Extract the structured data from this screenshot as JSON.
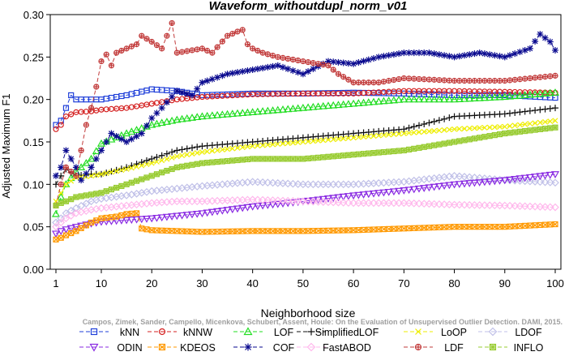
{
  "chart_data": {
    "type": "line",
    "title": "Waveform_withoutdupl_norm_v01",
    "xlabel": "Neighborhood size",
    "ylabel": "Adjusted Maximum F1",
    "xlim": [
      1,
      100
    ],
    "ylim": [
      0.0,
      0.3
    ],
    "xticks": [
      1,
      10,
      20,
      30,
      40,
      50,
      60,
      70,
      80,
      90,
      100
    ],
    "yticks": [
      0.0,
      0.05,
      0.1,
      0.15,
      0.2,
      0.25,
      0.3
    ],
    "ytick_labels": [
      "0.00",
      "0.05",
      "0.10",
      "0.15",
      "0.20",
      "0.25",
      "0.30"
    ],
    "grid": false,
    "legend_position": "bottom",
    "watermark": "Campos, Zimek, Sander, Campello, Micenkova, Schubert, Assent, Houle: On the Evaluation of Unsupervised Outlier Detection. DAMI, 2015.",
    "series": [
      {
        "name": "kNN",
        "color": "#1f3fd9",
        "marker": "square",
        "dash": "5,3",
        "points": [
          [
            1,
            0.17
          ],
          [
            2,
            0.175
          ],
          [
            3,
            0.19
          ],
          [
            4,
            0.205
          ],
          [
            5,
            0.2
          ],
          [
            8,
            0.2
          ],
          [
            10,
            0.2
          ],
          [
            15,
            0.205
          ],
          [
            20,
            0.212
          ],
          [
            25,
            0.21
          ],
          [
            30,
            0.205
          ],
          [
            40,
            0.207
          ],
          [
            50,
            0.207
          ],
          [
            60,
            0.208
          ],
          [
            70,
            0.207
          ],
          [
            80,
            0.205
          ],
          [
            90,
            0.205
          ],
          [
            100,
            0.202
          ]
        ]
      },
      {
        "name": "kNNW",
        "color": "#d42020",
        "marker": "circle",
        "dash": "5,3",
        "points": [
          [
            1,
            0.165
          ],
          [
            2,
            0.17
          ],
          [
            3,
            0.18
          ],
          [
            5,
            0.185
          ],
          [
            8,
            0.186
          ],
          [
            10,
            0.188
          ],
          [
            15,
            0.19
          ],
          [
            20,
            0.195
          ],
          [
            25,
            0.2
          ],
          [
            30,
            0.203
          ],
          [
            40,
            0.206
          ],
          [
            50,
            0.207
          ],
          [
            60,
            0.207
          ],
          [
            70,
            0.21
          ],
          [
            80,
            0.21
          ],
          [
            90,
            0.209
          ],
          [
            100,
            0.208
          ]
        ]
      },
      {
        "name": "LOF",
        "color": "#22dd22",
        "marker": "triangle-up",
        "dash": "5,3",
        "points": [
          [
            1,
            0.065
          ],
          [
            2,
            0.085
          ],
          [
            3,
            0.1
          ],
          [
            5,
            0.115
          ],
          [
            8,
            0.13
          ],
          [
            10,
            0.148
          ],
          [
            15,
            0.16
          ],
          [
            20,
            0.17
          ],
          [
            25,
            0.176
          ],
          [
            30,
            0.18
          ],
          [
            40,
            0.185
          ],
          [
            50,
            0.19
          ],
          [
            60,
            0.195
          ],
          [
            70,
            0.2
          ],
          [
            80,
            0.2
          ],
          [
            90,
            0.203
          ],
          [
            100,
            0.208
          ]
        ]
      },
      {
        "name": "SimplifiedLOF",
        "color": "#111111",
        "marker": "plus",
        "dash": "5,3",
        "points": [
          [
            1,
            0.1
          ],
          [
            2,
            0.11
          ],
          [
            3,
            0.118
          ],
          [
            5,
            0.11
          ],
          [
            8,
            0.112
          ],
          [
            10,
            0.112
          ],
          [
            15,
            0.12
          ],
          [
            20,
            0.13
          ],
          [
            25,
            0.14
          ],
          [
            30,
            0.145
          ],
          [
            40,
            0.15
          ],
          [
            50,
            0.155
          ],
          [
            60,
            0.16
          ],
          [
            70,
            0.165
          ],
          [
            80,
            0.18
          ],
          [
            90,
            0.183
          ],
          [
            100,
            0.19
          ]
        ]
      },
      {
        "name": "LoOP",
        "color": "#eeee00",
        "marker": "x",
        "dash": "5,3",
        "points": [
          [
            1,
            0.08
          ],
          [
            2,
            0.09
          ],
          [
            3,
            0.1
          ],
          [
            5,
            0.108
          ],
          [
            8,
            0.11
          ],
          [
            10,
            0.112
          ],
          [
            15,
            0.118
          ],
          [
            20,
            0.125
          ],
          [
            25,
            0.133
          ],
          [
            30,
            0.138
          ],
          [
            40,
            0.145
          ],
          [
            50,
            0.15
          ],
          [
            60,
            0.155
          ],
          [
            70,
            0.16
          ],
          [
            80,
            0.165
          ],
          [
            90,
            0.168
          ],
          [
            100,
            0.175
          ]
        ]
      },
      {
        "name": "LDOF",
        "color": "#c0c0e8",
        "marker": "diamond",
        "dash": "5,3",
        "points": [
          [
            1,
            0.055
          ],
          [
            2,
            0.06
          ],
          [
            3,
            0.066
          ],
          [
            5,
            0.072
          ],
          [
            8,
            0.08
          ],
          [
            10,
            0.083
          ],
          [
            15,
            0.087
          ],
          [
            20,
            0.092
          ],
          [
            25,
            0.095
          ],
          [
            30,
            0.098
          ],
          [
            40,
            0.103
          ],
          [
            50,
            0.1
          ],
          [
            60,
            0.1
          ],
          [
            70,
            0.103
          ],
          [
            80,
            0.11
          ],
          [
            90,
            0.105
          ],
          [
            100,
            0.102
          ]
        ]
      },
      {
        "name": "ODIN",
        "color": "#8a2be2",
        "marker": "triangle-down",
        "dash": "5,3",
        "points": [
          [
            1,
            0.042
          ],
          [
            2,
            0.045
          ],
          [
            3,
            0.047
          ],
          [
            5,
            0.05
          ],
          [
            8,
            0.054
          ],
          [
            10,
            0.056
          ],
          [
            15,
            0.058
          ],
          [
            20,
            0.06
          ],
          [
            25,
            0.063
          ],
          [
            30,
            0.066
          ],
          [
            40,
            0.074
          ],
          [
            50,
            0.08
          ],
          [
            60,
            0.087
          ],
          [
            70,
            0.093
          ],
          [
            80,
            0.1
          ],
          [
            90,
            0.105
          ],
          [
            100,
            0.112
          ]
        ]
      },
      {
        "name": "KDEOS",
        "color": "#ff9900",
        "marker": "square-x",
        "dash": "5,3",
        "points": [
          [
            1,
            0.035
          ],
          [
            2,
            0.037
          ],
          [
            3,
            0.04
          ],
          [
            5,
            0.045
          ],
          [
            8,
            0.055
          ],
          [
            10,
            0.06
          ],
          [
            13,
            0.062
          ],
          [
            15,
            0.065
          ],
          [
            17,
            0.066
          ],
          [
            18,
            0.048
          ],
          [
            20,
            0.046
          ],
          [
            25,
            0.045
          ],
          [
            30,
            0.044
          ],
          [
            40,
            0.045
          ],
          [
            50,
            0.045
          ],
          [
            60,
            0.046
          ],
          [
            70,
            0.048
          ],
          [
            80,
            0.05
          ],
          [
            90,
            0.05
          ],
          [
            100,
            0.053
          ]
        ]
      },
      {
        "name": "COF",
        "color": "#0a0a8f",
        "marker": "asterisk",
        "dash": "5,3",
        "points": [
          [
            1,
            0.11
          ],
          [
            2,
            0.12
          ],
          [
            3,
            0.14
          ],
          [
            4,
            0.13
          ],
          [
            5,
            0.12
          ],
          [
            6,
            0.105
          ],
          [
            8,
            0.12
          ],
          [
            10,
            0.14
          ],
          [
            12,
            0.16
          ],
          [
            15,
            0.15
          ],
          [
            18,
            0.16
          ],
          [
            20,
            0.178
          ],
          [
            22,
            0.19
          ],
          [
            25,
            0.21
          ],
          [
            28,
            0.205
          ],
          [
            30,
            0.22
          ],
          [
            35,
            0.23
          ],
          [
            40,
            0.235
          ],
          [
            45,
            0.24
          ],
          [
            50,
            0.23
          ],
          [
            55,
            0.245
          ],
          [
            60,
            0.242
          ],
          [
            65,
            0.25
          ],
          [
            70,
            0.255
          ],
          [
            75,
            0.255
          ],
          [
            80,
            0.25
          ],
          [
            85,
            0.255
          ],
          [
            90,
            0.25
          ],
          [
            95,
            0.26
          ],
          [
            97,
            0.277
          ],
          [
            99,
            0.268
          ],
          [
            100,
            0.258
          ]
        ]
      },
      {
        "name": "FastABOD",
        "color": "#ffb8ec",
        "marker": "diamond",
        "dash": "5,3",
        "points": [
          [
            1,
            0.05
          ],
          [
            2,
            0.055
          ],
          [
            3,
            0.06
          ],
          [
            5,
            0.066
          ],
          [
            8,
            0.07
          ],
          [
            10,
            0.072
          ],
          [
            15,
            0.075
          ],
          [
            20,
            0.078
          ],
          [
            25,
            0.08
          ],
          [
            30,
            0.08
          ],
          [
            40,
            0.082
          ],
          [
            50,
            0.08
          ],
          [
            60,
            0.078
          ],
          [
            70,
            0.078
          ],
          [
            80,
            0.076
          ],
          [
            90,
            0.075
          ],
          [
            100,
            0.073
          ]
        ]
      },
      {
        "name": "LDF",
        "color": "#c23b3b",
        "marker": "circle-plus",
        "dash": "5,3",
        "points": [
          [
            1,
            0.075
          ],
          [
            2,
            0.1
          ],
          [
            3,
            0.12
          ],
          [
            5,
            0.11
          ],
          [
            7,
            0.17
          ],
          [
            8,
            0.19
          ],
          [
            9,
            0.215
          ],
          [
            10,
            0.245
          ],
          [
            11,
            0.253
          ],
          [
            12,
            0.24
          ],
          [
            13,
            0.255
          ],
          [
            15,
            0.26
          ],
          [
            17,
            0.265
          ],
          [
            18,
            0.275
          ],
          [
            20,
            0.268
          ],
          [
            22,
            0.26
          ],
          [
            24,
            0.29
          ],
          [
            25,
            0.255
          ],
          [
            28,
            0.258
          ],
          [
            30,
            0.26
          ],
          [
            32,
            0.255
          ],
          [
            35,
            0.275
          ],
          [
            37,
            0.28
          ],
          [
            38,
            0.282
          ],
          [
            39,
            0.265
          ],
          [
            40,
            0.26
          ],
          [
            42,
            0.255
          ],
          [
            45,
            0.25
          ],
          [
            50,
            0.245
          ],
          [
            55,
            0.24
          ],
          [
            57,
            0.23
          ],
          [
            60,
            0.22
          ],
          [
            65,
            0.22
          ],
          [
            70,
            0.225
          ],
          [
            80,
            0.222
          ],
          [
            90,
            0.222
          ],
          [
            100,
            0.228
          ]
        ]
      },
      {
        "name": "INFLO",
        "color": "#99cc33",
        "marker": "square-star",
        "dash": "5,3",
        "points": [
          [
            1,
            0.075
          ],
          [
            2,
            0.078
          ],
          [
            3,
            0.08
          ],
          [
            5,
            0.085
          ],
          [
            8,
            0.088
          ],
          [
            10,
            0.09
          ],
          [
            15,
            0.1
          ],
          [
            20,
            0.11
          ],
          [
            25,
            0.12
          ],
          [
            30,
            0.125
          ],
          [
            40,
            0.13
          ],
          [
            50,
            0.13
          ],
          [
            60,
            0.135
          ],
          [
            70,
            0.14
          ],
          [
            80,
            0.15
          ],
          [
            90,
            0.16
          ],
          [
            100,
            0.167
          ]
        ]
      }
    ]
  }
}
